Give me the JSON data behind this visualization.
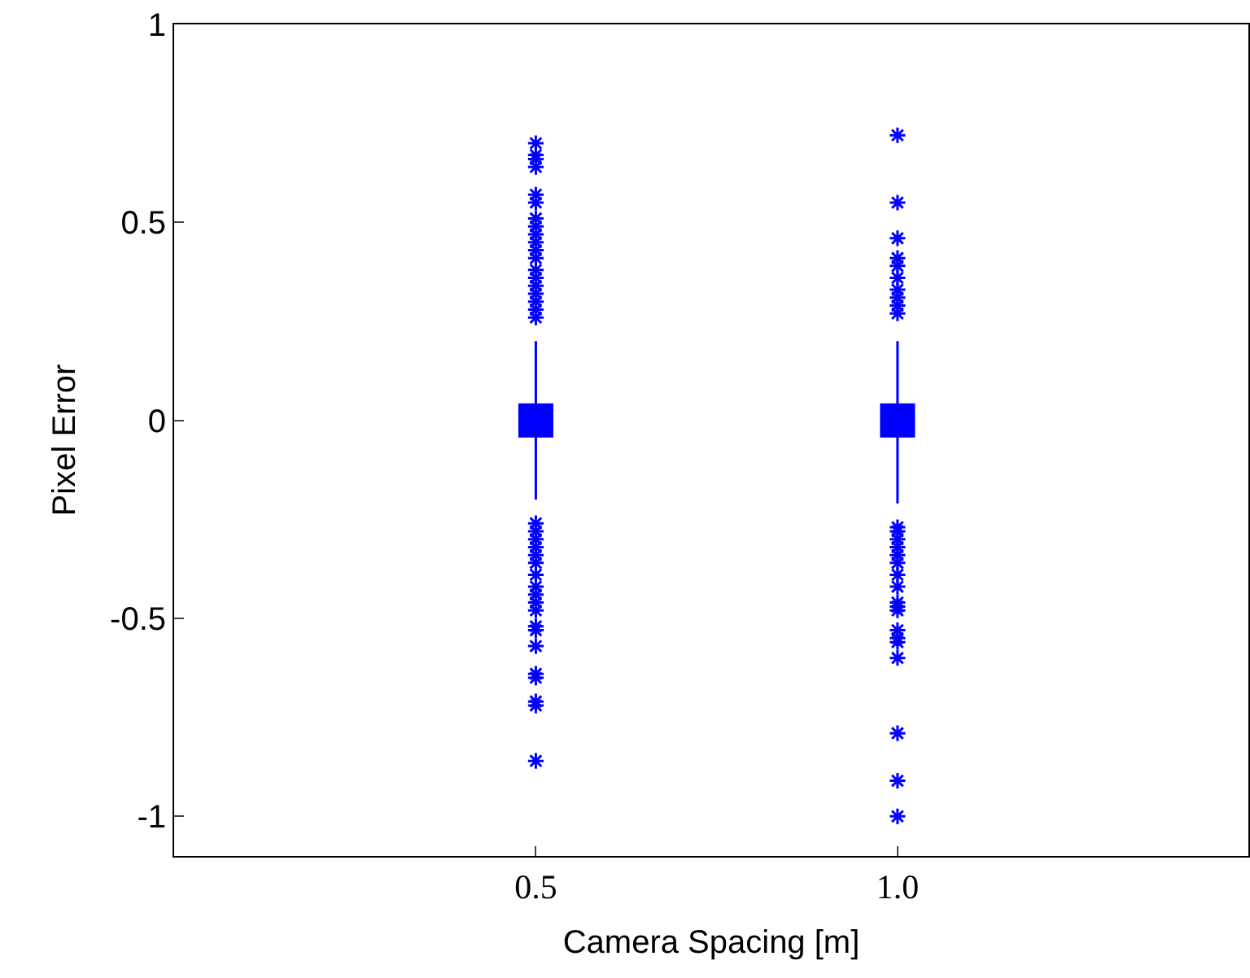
{
  "chart_data": {
    "type": "box",
    "xlabel": "Camera Spacing [m]",
    "ylabel": "Pixel Error",
    "categories": [
      "0.5",
      "1.0"
    ],
    "color": "#0000ff",
    "marker": "star",
    "ylim": [
      -1.1,
      1
    ],
    "yticks": [
      -1,
      -0.5,
      0,
      0.5,
      1
    ],
    "boxes": [
      {
        "low": -0.2,
        "q1": -0.04,
        "median": 0,
        "q3": 0.04,
        "high": 0.2,
        "outliers": [
          0.7,
          0.67,
          0.66,
          0.64,
          0.57,
          0.55,
          0.51,
          0.49,
          0.47,
          0.45,
          0.43,
          0.41,
          0.38,
          0.36,
          0.34,
          0.32,
          0.3,
          0.28,
          0.26,
          -0.26,
          -0.28,
          -0.3,
          -0.32,
          -0.34,
          -0.36,
          -0.39,
          -0.42,
          -0.44,
          -0.46,
          -0.48,
          -0.52,
          -0.53,
          -0.57,
          -0.64,
          -0.65,
          -0.71,
          -0.72,
          -0.86
        ]
      },
      {
        "low": -0.21,
        "q1": -0.04,
        "median": 0,
        "q3": 0.04,
        "high": 0.2,
        "outliers": [
          0.72,
          0.55,
          0.46,
          0.41,
          0.39,
          0.36,
          0.33,
          0.31,
          0.29,
          0.27,
          -0.27,
          -0.28,
          -0.3,
          -0.32,
          -0.34,
          -0.36,
          -0.39,
          -0.42,
          -0.46,
          -0.47,
          -0.48,
          -0.53,
          -0.55,
          -0.56,
          -0.6,
          -0.79,
          -0.91,
          -1.0
        ]
      }
    ]
  }
}
